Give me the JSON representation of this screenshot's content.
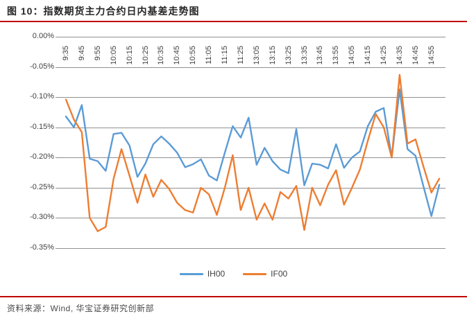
{
  "figure": {
    "title": "图 10：指数期货主力合约日内基差走势图",
    "source_note": "资料来源：Wind, 华宝证券研究创新部",
    "accent_rule_color": "#C00000"
  },
  "chart_data": {
    "type": "line",
    "title": "指数期货主力合约日内基差走势图",
    "unit": "percent",
    "ylim": [
      -0.35,
      0.0
    ],
    "grid": "horizontal",
    "legend_position": "bottom",
    "gridline_color": "#909090",
    "y_tick_labels": [
      "0.00%",
      "-0.05%",
      "-0.10%",
      "-0.15%",
      "-0.20%",
      "-0.25%",
      "-0.30%",
      "-0.35%"
    ],
    "x_tick_labels": [
      "9:35",
      "9:45",
      "9:55",
      "10:05",
      "10:15",
      "10:25",
      "10:35",
      "10:45",
      "10:55",
      "11:05",
      "11:15",
      "11:25",
      "13:05",
      "13:15",
      "13:25",
      "13:35",
      "13:45",
      "13:55",
      "14:05",
      "14:15",
      "14:25",
      "14:35",
      "14:45",
      "14:55"
    ],
    "points_per_tick": 2,
    "series": [
      {
        "name": "IH00",
        "color": "#5B9BD5",
        "values": [
          -0.132,
          -0.15,
          -0.113,
          -0.202,
          -0.206,
          -0.222,
          -0.161,
          -0.159,
          -0.18,
          -0.232,
          -0.21,
          -0.178,
          -0.165,
          -0.177,
          -0.192,
          -0.216,
          -0.211,
          -0.203,
          -0.23,
          -0.238,
          -0.192,
          -0.148,
          -0.167,
          -0.134,
          -0.212,
          -0.184,
          -0.206,
          -0.22,
          -0.226,
          -0.153,
          -0.246,
          -0.21,
          -0.212,
          -0.218,
          -0.178,
          -0.217,
          -0.2,
          -0.19,
          -0.148,
          -0.124,
          -0.118,
          -0.2,
          -0.087,
          -0.186,
          -0.197,
          -0.248,
          -0.297,
          -0.245
        ]
      },
      {
        "name": "IF00",
        "color": "#ED7D31",
        "values": [
          -0.104,
          -0.137,
          -0.158,
          -0.3,
          -0.322,
          -0.315,
          -0.235,
          -0.186,
          -0.23,
          -0.275,
          -0.228,
          -0.265,
          -0.237,
          -0.252,
          -0.275,
          -0.287,
          -0.291,
          -0.25,
          -0.261,
          -0.295,
          -0.25,
          -0.196,
          -0.287,
          -0.25,
          -0.303,
          -0.276,
          -0.303,
          -0.257,
          -0.268,
          -0.247,
          -0.32,
          -0.25,
          -0.279,
          -0.245,
          -0.221,
          -0.278,
          -0.25,
          -0.22,
          -0.172,
          -0.128,
          -0.15,
          -0.2,
          -0.063,
          -0.177,
          -0.17,
          -0.215,
          -0.258,
          -0.235
        ]
      }
    ]
  }
}
